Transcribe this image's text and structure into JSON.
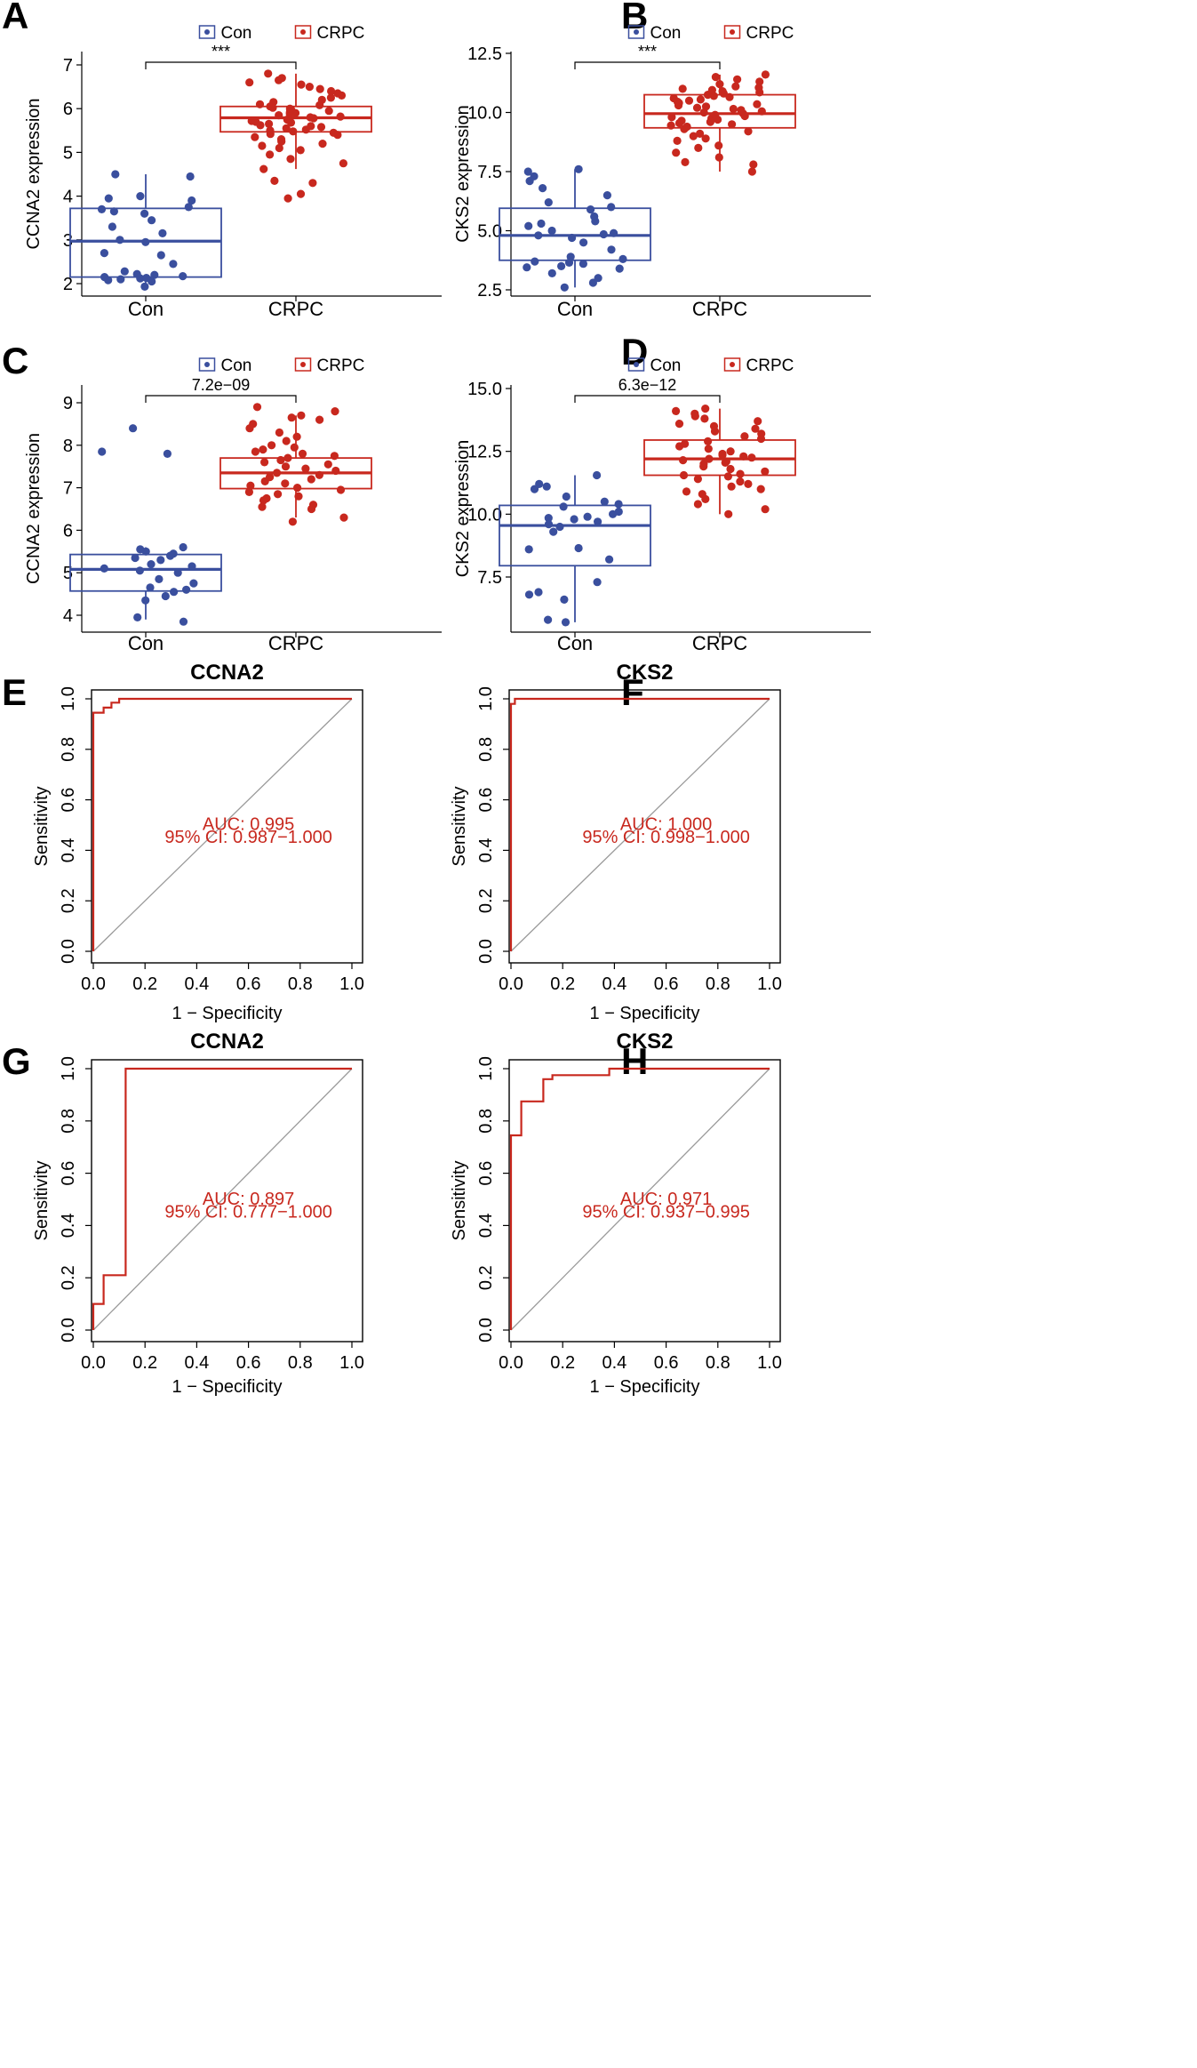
{
  "colors": {
    "con": "#3a4f9e",
    "crpc": "#c8281e",
    "diag": "#9a9a9a",
    "axis": "#000000"
  },
  "chart_data": [
    {
      "panel": "A",
      "type": "box",
      "legend": [
        "Con",
        "CRPC"
      ],
      "categories": [
        "Con",
        "CRPC"
      ],
      "ylabel": "CCNA2 expression",
      "ylim": [
        1.8,
        7.3
      ],
      "yticks": [
        2,
        3,
        4,
        5,
        6,
        7
      ],
      "ytick_labels": [
        "2",
        "3",
        "4",
        "5",
        "6",
        "7"
      ],
      "significance": "***",
      "boxes": [
        {
          "name": "Con",
          "min": 1.9,
          "q1": 2.15,
          "median": 2.97,
          "q3": 3.72,
          "max": 4.5
        },
        {
          "name": "CRPC",
          "min": 4.62,
          "q1": 5.47,
          "median": 5.79,
          "q3": 6.05,
          "max": 6.8
        }
      ],
      "points": [
        [
          1.93,
          2.05,
          2.08,
          2.1,
          2.12,
          2.13,
          2.15,
          2.17,
          2.2,
          2.22,
          2.28,
          2.45,
          2.65,
          2.7,
          2.95,
          3.0,
          3.15,
          3.3,
          3.45,
          3.6,
          3.65,
          3.7,
          3.75,
          3.9,
          3.95,
          4.0,
          4.45,
          4.5
        ],
        [
          3.95,
          4.05,
          4.3,
          4.35,
          4.62,
          4.75,
          4.85,
          4.95,
          5.05,
          5.1,
          5.15,
          5.2,
          5.25,
          5.3,
          5.35,
          5.4,
          5.42,
          5.45,
          5.48,
          5.5,
          5.52,
          5.55,
          5.58,
          5.6,
          5.62,
          5.65,
          5.68,
          5.7,
          5.72,
          5.75,
          5.78,
          5.8,
          5.82,
          5.85,
          5.88,
          5.9,
          5.92,
          5.95,
          5.98,
          6.0,
          6.02,
          6.05,
          6.08,
          6.1,
          6.15,
          6.2,
          6.25,
          6.3,
          6.35,
          6.4,
          6.45,
          6.5,
          6.55,
          6.6,
          6.65,
          6.7,
          6.8
        ]
      ]
    },
    {
      "panel": "B",
      "type": "box",
      "legend": [
        "Con",
        "CRPC"
      ],
      "categories": [
        "Con",
        "CRPC"
      ],
      "ylabel": "CKS2 expression",
      "ylim": [
        2.2,
        12.6
      ],
      "yticks": [
        2.5,
        5.0,
        7.5,
        10.0,
        12.5
      ],
      "ytick_labels": [
        "2.5",
        "5.0",
        "7.5",
        "10.0",
        "12.5"
      ],
      "significance": "***",
      "boxes": [
        {
          "name": "Con",
          "min": 2.6,
          "q1": 3.75,
          "median": 4.8,
          "q3": 5.95,
          "max": 7.6
        },
        {
          "name": "CRPC",
          "min": 7.5,
          "q1": 9.35,
          "median": 9.95,
          "q3": 10.75,
          "max": 11.6
        }
      ],
      "points": [
        [
          2.6,
          2.8,
          3.0,
          3.2,
          3.4,
          3.45,
          3.5,
          3.6,
          3.65,
          3.7,
          3.8,
          3.9,
          4.2,
          4.5,
          4.7,
          4.8,
          4.85,
          4.9,
          5.0,
          5.2,
          5.3,
          5.4,
          5.6,
          5.9,
          6.0,
          6.2,
          6.5,
          6.8,
          7.1,
          7.3,
          7.5,
          7.6
        ],
        [
          7.5,
          7.8,
          7.9,
          8.1,
          8.3,
          8.5,
          8.6,
          8.8,
          8.9,
          9.0,
          9.1,
          9.2,
          9.3,
          9.4,
          9.45,
          9.5,
          9.55,
          9.6,
          9.65,
          9.7,
          9.75,
          9.8,
          9.85,
          9.9,
          9.95,
          10.0,
          10.05,
          10.1,
          10.15,
          10.2,
          10.25,
          10.3,
          10.35,
          10.4,
          10.45,
          10.5,
          10.55,
          10.6,
          10.65,
          10.7,
          10.75,
          10.8,
          10.85,
          10.9,
          10.95,
          11.0,
          11.05,
          11.1,
          11.2,
          11.3,
          11.4,
          11.5,
          11.6
        ]
      ]
    },
    {
      "panel": "C",
      "type": "box",
      "legend": [
        "Con",
        "CRPC"
      ],
      "categories": [
        "Con",
        "CRPC"
      ],
      "ylabel": "CCNA2 expression",
      "ylim": [
        3.7,
        9.3
      ],
      "yticks": [
        4,
        5,
        6,
        7,
        8,
        9
      ],
      "ytick_labels": [
        "4",
        "5",
        "6",
        "7",
        "8",
        "9"
      ],
      "significance": "7.2e−09",
      "boxes": [
        {
          "name": "Con",
          "min": 3.9,
          "q1": 4.57,
          "median": 5.08,
          "q3": 5.43,
          "max": 5.6
        },
        {
          "name": "CRPC",
          "min": 6.3,
          "q1": 6.98,
          "median": 7.35,
          "q3": 7.7,
          "max": 8.7
        }
      ],
      "points": [
        [
          3.85,
          3.95,
          4.35,
          4.45,
          4.55,
          4.6,
          4.65,
          4.75,
          4.85,
          5.0,
          5.05,
          5.1,
          5.15,
          5.2,
          5.3,
          5.35,
          5.4,
          5.45,
          5.5,
          5.55,
          5.6,
          7.8,
          7.85,
          8.4
        ],
        [
          6.2,
          6.3,
          6.5,
          6.55,
          6.6,
          6.7,
          6.75,
          6.8,
          6.85,
          6.9,
          6.95,
          7.0,
          7.05,
          7.1,
          7.15,
          7.2,
          7.25,
          7.3,
          7.35,
          7.4,
          7.45,
          7.5,
          7.55,
          7.6,
          7.65,
          7.7,
          7.75,
          7.8,
          7.85,
          7.9,
          7.95,
          8.0,
          8.1,
          8.2,
          8.3,
          8.4,
          8.5,
          8.6,
          8.65,
          8.7,
          8.8,
          8.9
        ]
      ]
    },
    {
      "panel": "D",
      "type": "box",
      "legend": [
        "Con",
        "CRPC"
      ],
      "categories": [
        "Con",
        "CRPC"
      ],
      "ylabel": "CKS2 expression",
      "ylim": [
        5.4,
        15.2
      ],
      "yticks": [
        7.5,
        10.0,
        12.5,
        15.0
      ],
      "ytick_labels": [
        "7.5",
        "10.0",
        "12.5",
        "15.0"
      ],
      "significance": "6.3e−12",
      "boxes": [
        {
          "name": "Con",
          "min": 5.7,
          "q1": 7.95,
          "median": 9.55,
          "q3": 10.35,
          "max": 11.55
        },
        {
          "name": "CRPC",
          "min": 10.0,
          "q1": 11.55,
          "median": 12.2,
          "q3": 12.95,
          "max": 14.2
        }
      ],
      "points": [
        [
          5.7,
          5.8,
          6.6,
          6.8,
          6.9,
          7.3,
          8.2,
          8.6,
          8.65,
          9.3,
          9.5,
          9.6,
          9.7,
          9.8,
          9.85,
          9.9,
          10.0,
          10.1,
          10.3,
          10.4,
          10.5,
          10.7,
          11.0,
          11.1,
          11.2,
          11.55
        ],
        [
          10.0,
          10.2,
          10.4,
          10.6,
          10.8,
          10.9,
          11.0,
          11.1,
          11.2,
          11.3,
          11.4,
          11.5,
          11.55,
          11.6,
          11.7,
          11.8,
          11.9,
          12.0,
          12.05,
          12.1,
          12.15,
          12.2,
          12.25,
          12.3,
          12.35,
          12.4,
          12.5,
          12.6,
          12.7,
          12.8,
          12.9,
          13.0,
          13.1,
          13.2,
          13.3,
          13.4,
          13.5,
          13.6,
          13.7,
          13.8,
          13.9,
          14.0,
          14.1,
          14.2
        ]
      ]
    },
    {
      "panel": "E",
      "type": "roc",
      "title": "CCNA2",
      "xlabel": "1 − Specificity",
      "ylabel": "Sensitivity",
      "ticks": [
        "0.0",
        "0.2",
        "0.4",
        "0.6",
        "0.8",
        "1.0"
      ],
      "auc_label": "AUC: 0.995",
      "ci_label": "95% CI: 0.987−1.000",
      "curve": [
        [
          0,
          0
        ],
        [
          0,
          0.945
        ],
        [
          0.04,
          0.945
        ],
        [
          0.04,
          0.965
        ],
        [
          0.07,
          0.965
        ],
        [
          0.07,
          0.985
        ],
        [
          0.1,
          0.985
        ],
        [
          0.1,
          1.0
        ],
        [
          1.0,
          1.0
        ]
      ]
    },
    {
      "panel": "F",
      "type": "roc",
      "title": "CKS2",
      "xlabel": "1 − Specificity",
      "ylabel": "Sensitivity",
      "ticks": [
        "0.0",
        "0.2",
        "0.4",
        "0.6",
        "0.8",
        "1.0"
      ],
      "auc_label": "AUC: 1.000",
      "ci_label": "95% CI: 0.998−1.000",
      "curve": [
        [
          0,
          0
        ],
        [
          0,
          0.98
        ],
        [
          0.015,
          0.98
        ],
        [
          0.015,
          1.0
        ],
        [
          1.0,
          1.0
        ]
      ]
    },
    {
      "panel": "G",
      "type": "roc",
      "title": "CCNA2",
      "xlabel": "1 − Specificity",
      "ylabel": "Sensitivity",
      "ticks": [
        "0.0",
        "0.2",
        "0.4",
        "0.6",
        "0.8",
        "1.0"
      ],
      "auc_label": "AUC: 0.897",
      "ci_label": "95% CI: 0.777−1.000",
      "curve": [
        [
          0,
          0
        ],
        [
          0,
          0.1
        ],
        [
          0.04,
          0.1
        ],
        [
          0.04,
          0.21
        ],
        [
          0.125,
          0.21
        ],
        [
          0.125,
          1.0
        ],
        [
          1.0,
          1.0
        ]
      ]
    },
    {
      "panel": "H",
      "type": "roc",
      "title": "CKS2",
      "xlabel": "1 − Specificity",
      "ylabel": "Sensitivity",
      "ticks": [
        "0.0",
        "0.2",
        "0.4",
        "0.6",
        "0.8",
        "1.0"
      ],
      "auc_label": "AUC: 0.971",
      "ci_label": "95% CI: 0.937−0.995",
      "curve": [
        [
          0,
          0
        ],
        [
          0,
          0.745
        ],
        [
          0.04,
          0.745
        ],
        [
          0.04,
          0.875
        ],
        [
          0.125,
          0.875
        ],
        [
          0.125,
          0.96
        ],
        [
          0.16,
          0.96
        ],
        [
          0.16,
          0.975
        ],
        [
          0.38,
          0.975
        ],
        [
          0.38,
          1.0
        ],
        [
          1.0,
          1.0
        ]
      ]
    }
  ]
}
